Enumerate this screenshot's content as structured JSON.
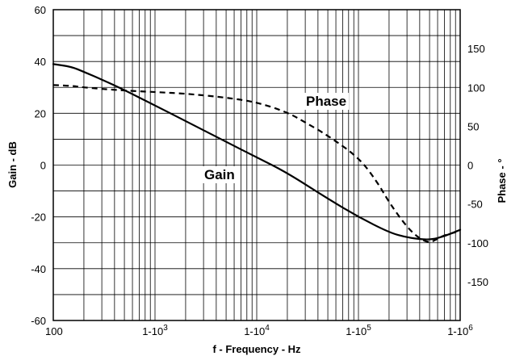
{
  "chart_data": {
    "type": "line",
    "xscale": "log",
    "xlabel": "f - Frequency - Hz",
    "ylabel": "Gain - dB",
    "y2label": "Phase - °",
    "xlim": [
      100,
      1000000
    ],
    "ylim": [
      -60,
      60
    ],
    "y2lim": [
      -200,
      200
    ],
    "grid": true,
    "legend": "none",
    "xticks": [
      {
        "value": 100,
        "base": "100",
        "exp": ""
      },
      {
        "value": 1000,
        "base": "1-10",
        "exp": "3"
      },
      {
        "value": 10000,
        "base": "1-10",
        "exp": "4"
      },
      {
        "value": 100000,
        "base": "1-10",
        "exp": "5"
      },
      {
        "value": 1000000,
        "base": "1-10",
        "exp": "6"
      }
    ],
    "yticks": [
      "60",
      "40",
      "20",
      "0",
      "-20",
      "-40",
      "-60"
    ],
    "y2ticks": [
      "150",
      "100",
      "50",
      "0",
      "-50",
      "-100",
      "-150"
    ],
    "series": [
      {
        "name": "Gain",
        "axis": "left",
        "style": "solid",
        "x": [
          100,
          150,
          200,
          300,
          500,
          1000,
          2000,
          5000,
          10000,
          20000,
          50000,
          100000,
          200000,
          300000,
          500000,
          700000,
          1000000
        ],
        "y": [
          39,
          38,
          36,
          33,
          29,
          23,
          17,
          9,
          3,
          -3,
          -13,
          -20,
          -26,
          -28,
          -29,
          -27.5,
          -25
        ]
      },
      {
        "name": "Phase",
        "axis": "right",
        "style": "dashed",
        "x": [
          100,
          150,
          200,
          300,
          500,
          1000,
          2000,
          5000,
          10000,
          20000,
          30000,
          50000,
          100000,
          150000,
          200000,
          300000,
          400000,
          500000,
          600000,
          700000,
          1000000
        ],
        "y": [
          103,
          102,
          100,
          98,
          96,
          94,
          92,
          87,
          81,
          68,
          55,
          38,
          10,
          -20,
          -48,
          -80,
          -95,
          -100,
          -95,
          -90,
          -85
        ]
      }
    ],
    "annotations": [
      {
        "text": "Phase",
        "series": "Phase"
      },
      {
        "text": "Gain",
        "series": "Gain"
      }
    ]
  }
}
